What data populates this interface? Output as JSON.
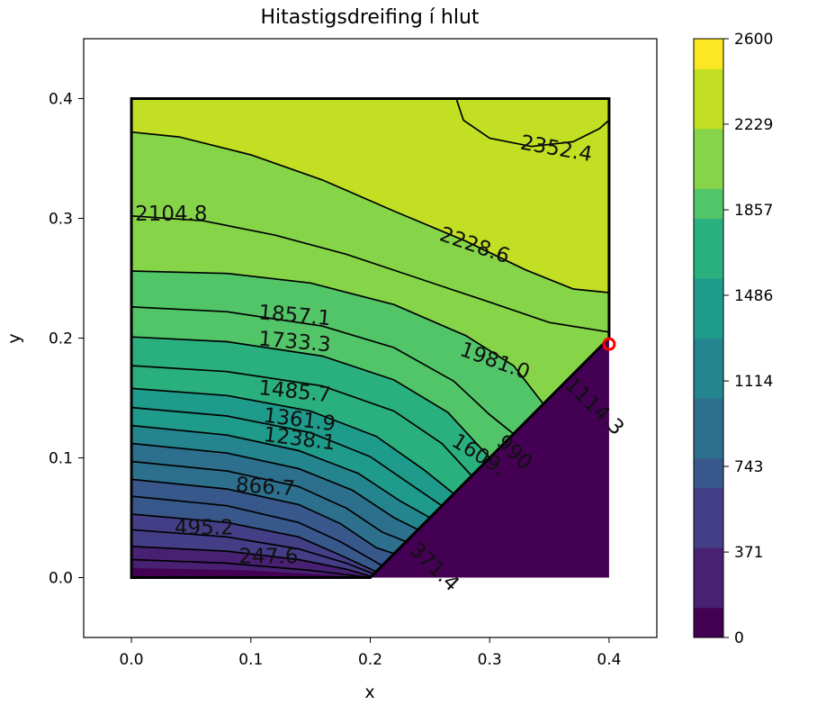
{
  "chart_data": {
    "type": "contour",
    "title": "Hitastigsdreifing í hlut",
    "xlabel": "x",
    "ylabel": "y",
    "xlim": [
      -0.04,
      0.44
    ],
    "ylim": [
      -0.05,
      0.45
    ],
    "x_ticks": [
      "0.0",
      "0.1",
      "0.2",
      "0.3",
      "0.4"
    ],
    "x_tick_values": [
      0.0,
      0.1,
      0.2,
      0.3,
      0.4
    ],
    "y_ticks": [
      "0.0",
      "0.1",
      "0.2",
      "0.3",
      "0.4"
    ],
    "y_tick_values": [
      0.0,
      0.1,
      0.2,
      0.3,
      0.4
    ],
    "colormap": "viridis",
    "colorbar": {
      "range": [
        0,
        2600
      ],
      "tick_labels": [
        "0",
        "371",
        "743",
        "1114",
        "1486",
        "1857",
        "2229",
        "2600"
      ],
      "tick_values": [
        0,
        371,
        743,
        1114,
        1486,
        1857,
        2229,
        2600
      ]
    },
    "domain_outline": [
      [
        0,
        0
      ],
      [
        0.2,
        0
      ],
      [
        0.4,
        0.2
      ],
      [
        0.4,
        0.4
      ],
      [
        0,
        0.4
      ]
    ],
    "marker": {
      "x": 0.4,
      "y": 0.195,
      "color": "#ff0000"
    },
    "contour_labels": [
      {
        "text": "2352.4",
        "x": 0.325,
        "y": 0.358,
        "angle": 10
      },
      {
        "text": "2228.6",
        "x": 0.257,
        "y": 0.282,
        "angle": 19
      },
      {
        "text": "2104.8",
        "x": 0.003,
        "y": 0.298,
        "angle": 0
      },
      {
        "text": "1981.0",
        "x": 0.274,
        "y": 0.186,
        "angle": 20
      },
      {
        "text": "1857.1",
        "x": 0.106,
        "y": 0.216,
        "angle": 5
      },
      {
        "text": "1733.3",
        "x": 0.106,
        "y": 0.194,
        "angle": 5
      },
      {
        "text": "1485.7",
        "x": 0.106,
        "y": 0.153,
        "angle": 6
      },
      {
        "text": "1361.9",
        "x": 0.11,
        "y": 0.13,
        "angle": 7
      },
      {
        "text": "1238.1",
        "x": 0.11,
        "y": 0.114,
        "angle": 7
      },
      {
        "text": "1609.",
        "x": 0.267,
        "y": 0.111,
        "angle": 32
      },
      {
        "text": "866.7",
        "x": 0.087,
        "y": 0.072,
        "angle": 4
      },
      {
        "text": "495.2",
        "x": 0.036,
        "y": 0.036,
        "angle": 0
      },
      {
        "text": "247.6",
        "x": 0.09,
        "y": 0.012,
        "angle": 0
      },
      {
        "text": "371.4",
        "x": 0.232,
        "y": 0.022,
        "angle": 44
      },
      {
        "text": "990",
        "x": 0.305,
        "y": 0.112,
        "angle": 44
      },
      {
        "text": "1114.3",
        "x": 0.362,
        "y": 0.16,
        "angle": 44
      }
    ],
    "contour_levels": [
      123.8,
      247.6,
      371.4,
      495.2,
      619.0,
      742.9,
      866.7,
      990.5,
      1114.3,
      1238.1,
      1361.9,
      1485.7,
      1609.5,
      1733.3,
      1857.1,
      1981.0,
      2104.8,
      2228.6,
      2352.4,
      2476.2
    ],
    "isotherms": [
      {
        "value": 2352.4,
        "points": [
          [
            0.272,
            0.4
          ],
          [
            0.278,
            0.382
          ],
          [
            0.3,
            0.367
          ],
          [
            0.335,
            0.36
          ],
          [
            0.37,
            0.364
          ],
          [
            0.392,
            0.375
          ],
          [
            0.4,
            0.382
          ]
        ]
      },
      {
        "value": 2228.6,
        "points": [
          [
            0.0,
            0.372
          ],
          [
            0.04,
            0.368
          ],
          [
            0.1,
            0.353
          ],
          [
            0.16,
            0.332
          ],
          [
            0.22,
            0.306
          ],
          [
            0.28,
            0.281
          ],
          [
            0.33,
            0.257
          ],
          [
            0.37,
            0.241
          ],
          [
            0.4,
            0.238
          ]
        ]
      },
      {
        "value": 2104.8,
        "points": [
          [
            0.0,
            0.302
          ],
          [
            0.06,
            0.298
          ],
          [
            0.12,
            0.286
          ],
          [
            0.18,
            0.27
          ],
          [
            0.24,
            0.25
          ],
          [
            0.3,
            0.23
          ],
          [
            0.35,
            0.213
          ],
          [
            0.4,
            0.205
          ]
        ]
      },
      {
        "value": 1981.0,
        "points": [
          [
            0.0,
            0.256
          ],
          [
            0.08,
            0.254
          ],
          [
            0.15,
            0.246
          ],
          [
            0.22,
            0.228
          ],
          [
            0.28,
            0.202
          ],
          [
            0.32,
            0.177
          ],
          [
            0.345,
            0.145
          ]
        ]
      },
      {
        "value": 1857.1,
        "points": [
          [
            0.0,
            0.226
          ],
          [
            0.08,
            0.222
          ],
          [
            0.16,
            0.21
          ],
          [
            0.22,
            0.192
          ],
          [
            0.27,
            0.164
          ],
          [
            0.3,
            0.136
          ],
          [
            0.32,
            0.12
          ]
        ]
      },
      {
        "value": 1733.3,
        "points": [
          [
            0.0,
            0.201
          ],
          [
            0.08,
            0.197
          ],
          [
            0.16,
            0.185
          ],
          [
            0.22,
            0.165
          ],
          [
            0.265,
            0.138
          ],
          [
            0.3,
            0.1
          ]
        ]
      },
      {
        "value": 1609.5,
        "points": [
          [
            0.0,
            0.177
          ],
          [
            0.08,
            0.172
          ],
          [
            0.16,
            0.16
          ],
          [
            0.22,
            0.139
          ],
          [
            0.26,
            0.112
          ],
          [
            0.285,
            0.085
          ]
        ]
      },
      {
        "value": 1485.7,
        "points": [
          [
            0.0,
            0.158
          ],
          [
            0.08,
            0.152
          ],
          [
            0.15,
            0.139
          ],
          [
            0.205,
            0.118
          ],
          [
            0.245,
            0.09
          ],
          [
            0.27,
            0.07
          ]
        ]
      },
      {
        "value": 1361.9,
        "points": [
          [
            0.0,
            0.142
          ],
          [
            0.08,
            0.135
          ],
          [
            0.15,
            0.121
          ],
          [
            0.2,
            0.101
          ],
          [
            0.235,
            0.077
          ],
          [
            0.26,
            0.06
          ]
        ]
      },
      {
        "value": 1238.1,
        "points": [
          [
            0.0,
            0.127
          ],
          [
            0.08,
            0.119
          ],
          [
            0.14,
            0.106
          ],
          [
            0.19,
            0.087
          ],
          [
            0.225,
            0.064
          ],
          [
            0.25,
            0.05
          ]
        ]
      },
      {
        "value": 1114.3,
        "points": [
          [
            0.0,
            0.112
          ],
          [
            0.08,
            0.104
          ],
          [
            0.14,
            0.091
          ],
          [
            0.185,
            0.073
          ],
          [
            0.22,
            0.05
          ],
          [
            0.24,
            0.04
          ]
        ]
      },
      {
        "value": 990.5,
        "points": [
          [
            0.0,
            0.097
          ],
          [
            0.08,
            0.089
          ],
          [
            0.14,
            0.076
          ],
          [
            0.18,
            0.058
          ],
          [
            0.21,
            0.038
          ],
          [
            0.23,
            0.03
          ]
        ]
      },
      {
        "value": 866.7,
        "points": [
          [
            0.0,
            0.082
          ],
          [
            0.08,
            0.074
          ],
          [
            0.14,
            0.061
          ],
          [
            0.175,
            0.045
          ],
          [
            0.205,
            0.025
          ],
          [
            0.22,
            0.02
          ]
        ]
      },
      {
        "value": 742.9,
        "points": [
          [
            0.0,
            0.068
          ],
          [
            0.08,
            0.06
          ],
          [
            0.14,
            0.046
          ],
          [
            0.175,
            0.03
          ],
          [
            0.21,
            0.01
          ]
        ]
      },
      {
        "value": 619.0,
        "points": [
          [
            0.0,
            0.053
          ],
          [
            0.08,
            0.046
          ],
          [
            0.14,
            0.034
          ],
          [
            0.17,
            0.021
          ],
          [
            0.205,
            0.005
          ]
        ]
      },
      {
        "value": 495.2,
        "points": [
          [
            0.0,
            0.04
          ],
          [
            0.08,
            0.034
          ],
          [
            0.14,
            0.024
          ],
          [
            0.18,
            0.012
          ],
          [
            0.203,
            0.003
          ]
        ]
      },
      {
        "value": 371.4,
        "points": [
          [
            0.0,
            0.026
          ],
          [
            0.08,
            0.022
          ],
          [
            0.14,
            0.015
          ],
          [
            0.18,
            0.007
          ],
          [
            0.201,
            0.001
          ]
        ]
      },
      {
        "value": 247.6,
        "points": [
          [
            0.0,
            0.015
          ],
          [
            0.08,
            0.012
          ],
          [
            0.15,
            0.006
          ],
          [
            0.2,
            0.0
          ]
        ]
      }
    ]
  }
}
